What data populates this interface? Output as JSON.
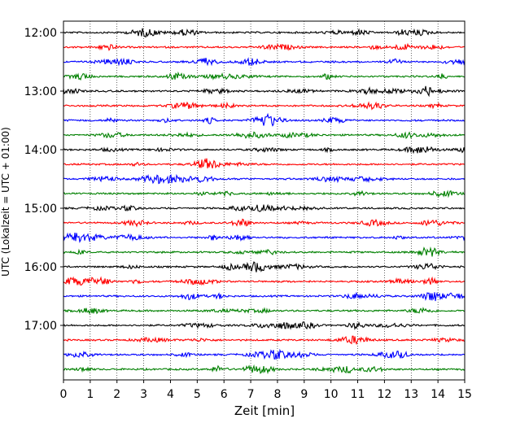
{
  "chart_data": {
    "type": "line",
    "title": "",
    "xlabel": "Zeit  [min]",
    "ylabel": "UTC (Lokalzeit = UTC + 01:00)",
    "xlim": [
      0,
      15
    ],
    "x_ticks": [
      "0",
      "1",
      "2",
      "3",
      "4",
      "5",
      "6",
      "7",
      "8",
      "9",
      "10",
      "11",
      "12",
      "13",
      "14",
      "15"
    ],
    "y_tick_labels": [
      "12:00",
      "13:00",
      "14:00",
      "15:00",
      "16:00",
      "17:00"
    ],
    "grid": "vertical dotted lines at each minute",
    "trace_interval_minutes": 15,
    "trace_start_times": [
      "12:00",
      "12:15",
      "12:30",
      "12:45",
      "13:00",
      "13:15",
      "13:30",
      "13:45",
      "14:00",
      "14:15",
      "14:30",
      "14:45",
      "15:00",
      "15:15",
      "15:30",
      "15:45",
      "16:00",
      "16:15",
      "16:30",
      "16:45",
      "17:00",
      "17:15",
      "17:30",
      "17:45"
    ],
    "trace_color_cycle": [
      "#000000",
      "#ff0000",
      "#0000ff",
      "#008000"
    ]
  }
}
